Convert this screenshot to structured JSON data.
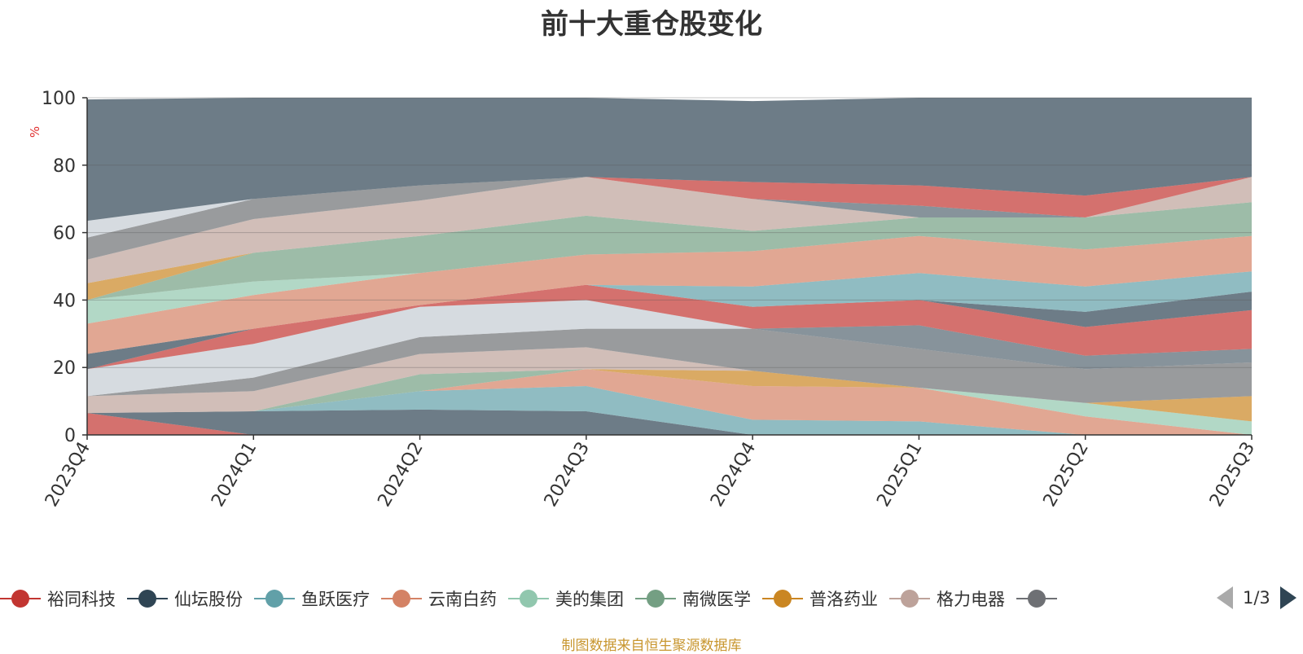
{
  "chart_data": {
    "type": "area",
    "stacked": true,
    "title": "前十大重仓股变化",
    "ylabel": "%",
    "ylim": [
      0,
      100
    ],
    "yticks": [
      0,
      20,
      40,
      60,
      80,
      100
    ],
    "grid": true,
    "categories": [
      "2023Q4",
      "2024Q1",
      "2024Q2",
      "2024Q3",
      "2024Q4",
      "2025Q1",
      "2025Q2",
      "2025Q3"
    ],
    "legend_position": "bottom",
    "series": [
      {
        "name": "裕同科技",
        "color": "#c23531",
        "values": [
          6.5,
          0,
          0,
          0,
          0,
          0,
          0,
          0
        ]
      },
      {
        "name": "仙坛股份",
        "color": "#2f4554",
        "values": [
          0,
          7,
          7.5,
          7,
          0,
          0,
          0,
          0
        ]
      },
      {
        "name": "鱼跃医疗",
        "color": "#61a0a8",
        "values": [
          0,
          0,
          5.5,
          7.5,
          4.5,
          4,
          0,
          0
        ]
      },
      {
        "name": "云南白药",
        "color": "#d48265",
        "values": [
          0,
          0,
          0,
          5,
          10,
          10,
          5.5,
          0
        ]
      },
      {
        "name": "美的集团",
        "color": "#91c7ae",
        "values": [
          0,
          0,
          0,
          0,
          0,
          0,
          4,
          4
        ]
      },
      {
        "name": "南微医学",
        "color": "#749f83",
        "values": [
          0,
          0,
          5,
          0,
          0,
          0,
          0,
          0
        ]
      },
      {
        "name": "普洛药业",
        "color": "#ca8622",
        "values": [
          0,
          0,
          0,
          0,
          4.5,
          0,
          0,
          7.5
        ]
      },
      {
        "name": "格力电器",
        "color": "#bda29a",
        "values": [
          5,
          6,
          6,
          6.5,
          0,
          0,
          0,
          0
        ]
      },
      {
        "name": "",
        "color": "#6e7074",
        "values": [
          0,
          4,
          5,
          5.5,
          12.5,
          11.5,
          10,
          10
        ]
      },
      {
        "name": "",
        "color": "#546570",
        "values": [
          0,
          0,
          0,
          0,
          0,
          7,
          4,
          4
        ]
      },
      {
        "name": "",
        "color": "#c4ccd3",
        "values": [
          8,
          10,
          9,
          8.5,
          0,
          0,
          0,
          0
        ]
      },
      {
        "name": "",
        "color": "#c23531",
        "values": [
          0,
          4.5,
          0.5,
          4.5,
          6.5,
          7.5,
          8.5,
          11.5
        ]
      },
      {
        "name": "",
        "color": "#2f4554",
        "values": [
          4.5,
          0,
          0,
          0,
          0,
          0,
          4.5,
          5.5
        ]
      },
      {
        "name": "",
        "color": "#61a0a8",
        "values": [
          0,
          0,
          0,
          0,
          6,
          8,
          7.5,
          6
        ]
      },
      {
        "name": "",
        "color": "#d48265",
        "values": [
          9,
          10,
          9.5,
          9,
          10.5,
          11,
          11,
          10.5
        ]
      },
      {
        "name": "",
        "color": "#91c7ae",
        "values": [
          7,
          4,
          0,
          0,
          0,
          0,
          0,
          0
        ]
      },
      {
        "name": "",
        "color": "#749f83",
        "values": [
          0,
          8.5,
          11,
          11.5,
          6,
          5.5,
          9.5,
          10
        ]
      },
      {
        "name": "",
        "color": "#ca8622",
        "values": [
          5,
          0,
          0,
          0,
          0,
          0,
          0,
          0
        ]
      },
      {
        "name": "",
        "color": "#bda29a",
        "values": [
          7,
          10,
          10.5,
          11.5,
          9.5,
          0,
          0,
          7.5
        ]
      },
      {
        "name": "",
        "color": "#6e7074",
        "values": [
          6.5,
          6,
          4.5,
          0,
          0,
          0,
          0,
          0
        ]
      },
      {
        "name": "",
        "color": "#546570",
        "values": [
          0,
          0,
          0,
          0,
          0,
          3.5,
          0,
          0
        ]
      },
      {
        "name": "",
        "color": "#c4ccd3",
        "values": [
          5,
          0,
          0,
          0,
          0,
          0,
          0,
          0
        ]
      },
      {
        "name": "",
        "color": "#c23531",
        "values": [
          0,
          0,
          0,
          0,
          5,
          6,
          6.5,
          0
        ]
      },
      {
        "name": "",
        "color": "#2f4554",
        "values": [
          36,
          30,
          26,
          23.5,
          24,
          26,
          29,
          23.5
        ]
      }
    ]
  },
  "legend": {
    "items": [
      {
        "label": "裕同科技",
        "color": "#c23531"
      },
      {
        "label": "仙坛股份",
        "color": "#2f4554"
      },
      {
        "label": "鱼跃医疗",
        "color": "#61a0a8"
      },
      {
        "label": "云南白药",
        "color": "#d48265"
      },
      {
        "label": "美的集团",
        "color": "#91c7ae"
      },
      {
        "label": "南微医学",
        "color": "#749f83"
      },
      {
        "label": "普洛药业",
        "color": "#ca8622"
      },
      {
        "label": "格力电器",
        "color": "#bda29a"
      },
      {
        "label": "",
        "color": "#6e7074"
      }
    ],
    "page_text": "1/3"
  },
  "source_note": "制图数据来自恒生聚源数据库"
}
